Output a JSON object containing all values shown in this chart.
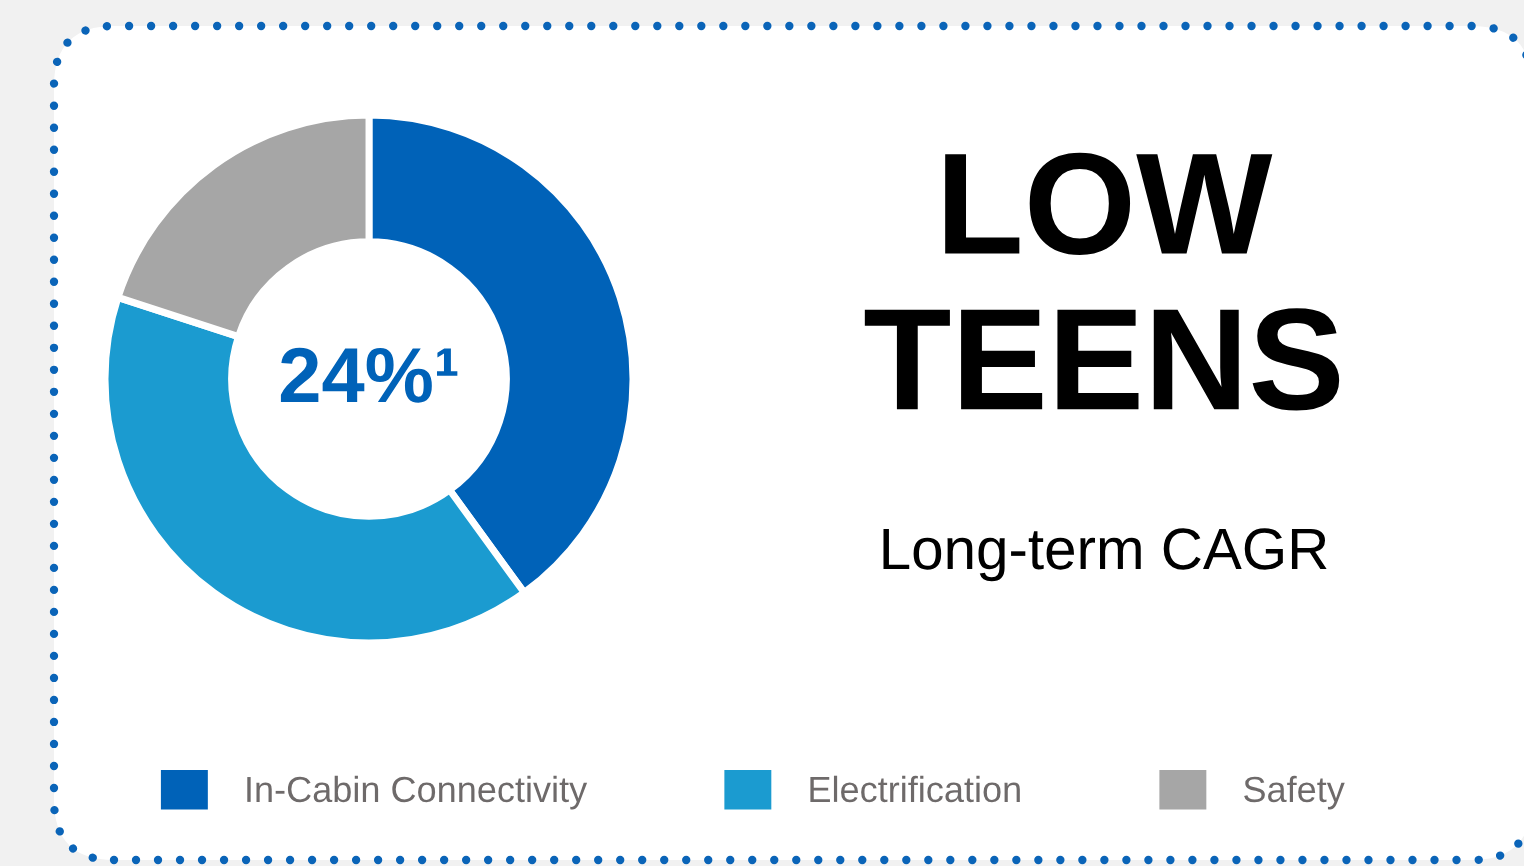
{
  "chart_data": {
    "type": "donut",
    "categories": [
      "In-Cabin Connectivity",
      "Electrification",
      "Safety"
    ],
    "values": [
      40,
      40,
      20
    ],
    "colors": [
      "#0062b8",
      "#1b9bd0",
      "#a6a6a6"
    ],
    "annotations": [
      "24%¹",
      "LOW\nTEENS",
      "Long-term CAGR"
    ],
    "legend": "bottom"
  }
}
